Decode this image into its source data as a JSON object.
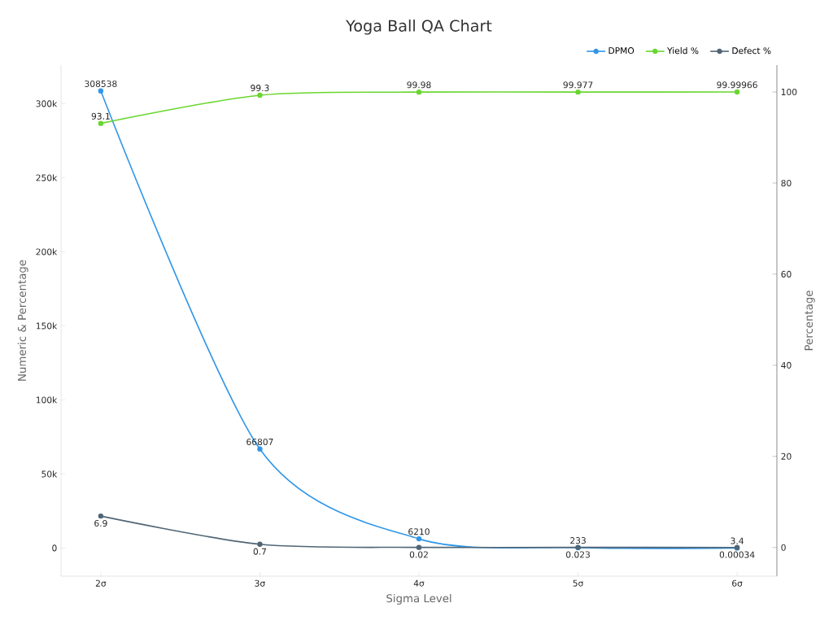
{
  "chart_data": {
    "type": "line",
    "title": "Yoga Ball QA Chart",
    "xlabel": "Sigma Level",
    "ylabel": "Numeric & Percentage",
    "y2label": "Percentage",
    "categories": [
      "2σ",
      "3σ",
      "4σ",
      "5σ",
      "6σ"
    ],
    "series": [
      {
        "name": "DPMO",
        "color": "#3096e8",
        "values": [
          308538,
          66807,
          6210,
          233,
          3.4
        ]
      },
      {
        "name": "Yield %",
        "color": "#6ad62f",
        "axis": "y2",
        "values": [
          93.1,
          99.3,
          99.98,
          99.977,
          99.99966
        ]
      },
      {
        "name": "Defect %",
        "color": "#506575",
        "axis": "y2",
        "values": [
          6.9,
          0.7,
          0.02,
          0.023,
          0.00034
        ]
      }
    ],
    "ylim": [
      -19000,
      326000
    ],
    "yticks": [
      {
        "value": 0,
        "label": "0"
      },
      {
        "value": 50000,
        "label": "50k"
      },
      {
        "value": 100000,
        "label": "100k"
      },
      {
        "value": 150000,
        "label": "150k"
      },
      {
        "value": 200000,
        "label": "200k"
      },
      {
        "value": 250000,
        "label": "250k"
      },
      {
        "value": 300000,
        "label": "300k"
      }
    ],
    "y2lim": [
      -6.3,
      105.9
    ],
    "y2ticks": [
      0,
      20,
      40,
      60,
      80,
      100
    ],
    "data_labels": true,
    "legend": "top right",
    "marker": "circle",
    "grid": false
  }
}
